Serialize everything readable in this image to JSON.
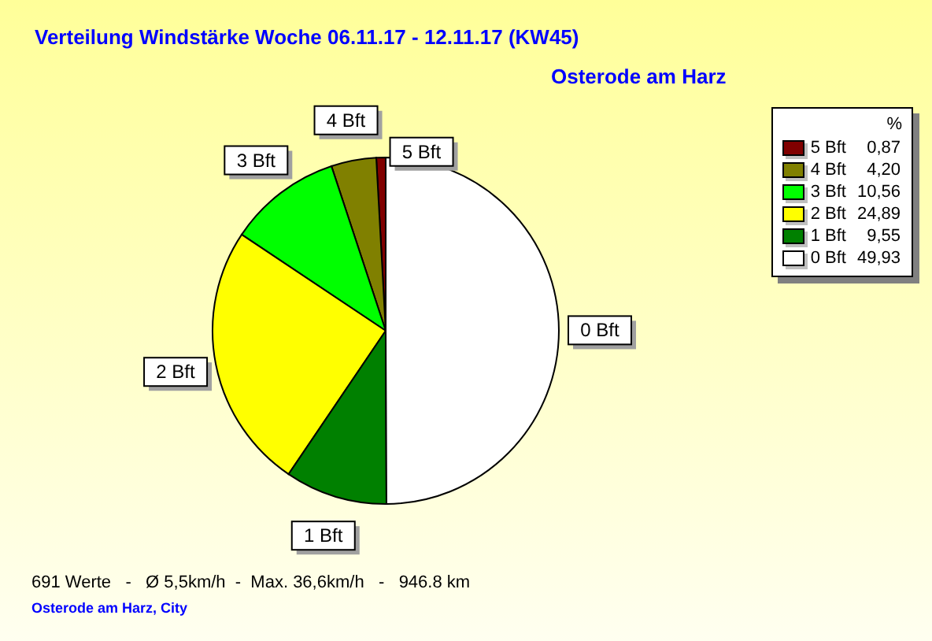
{
  "chart_data": {
    "type": "pie",
    "title": "Verteilung Windstärke  Woche 06.11.17 - 12.11.17 (KW45)",
    "subtitle": "Osterode am Harz",
    "legend_title": "%",
    "categories": [
      "5 Bft",
      "4 Bft",
      "3 Bft",
      "2 Bft",
      "1 Bft",
      "0 Bft"
    ],
    "values": [
      0.87,
      4.2,
      10.56,
      24.89,
      9.55,
      49.93
    ],
    "value_labels": [
      "0,87",
      "4,20",
      "10,56",
      "24,89",
      "9,55",
      "49,93"
    ],
    "colors": [
      "#800000",
      "#808000",
      "#00ff00",
      "#ffff00",
      "#008000",
      "#ffffff"
    ],
    "legend": "top right",
    "annotations": [
      "691 Werte   -   Ø 5,5km/h  -  Max. 36,6km/h   -   946.8 km",
      "Osterode am Harz, City"
    ]
  }
}
